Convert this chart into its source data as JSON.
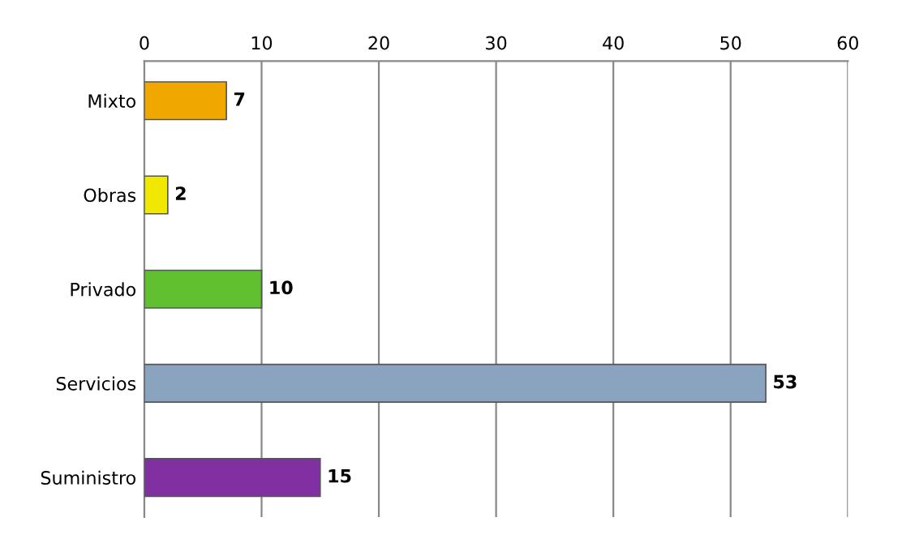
{
  "chart_data": {
    "type": "bar",
    "orientation": "horizontal",
    "categories": [
      "Mixto",
      "Obras",
      "Privado",
      "Servicios",
      "Suministro"
    ],
    "values": [
      7,
      2,
      10,
      53,
      15
    ],
    "colors": [
      "#f0a800",
      "#f0e800",
      "#60c030",
      "#8aa4c0",
      "#8030a0"
    ],
    "xlim": [
      0,
      60
    ],
    "xticks": [
      0,
      10,
      20,
      30,
      40,
      50,
      60
    ],
    "grid": "x",
    "data_labels": true
  }
}
